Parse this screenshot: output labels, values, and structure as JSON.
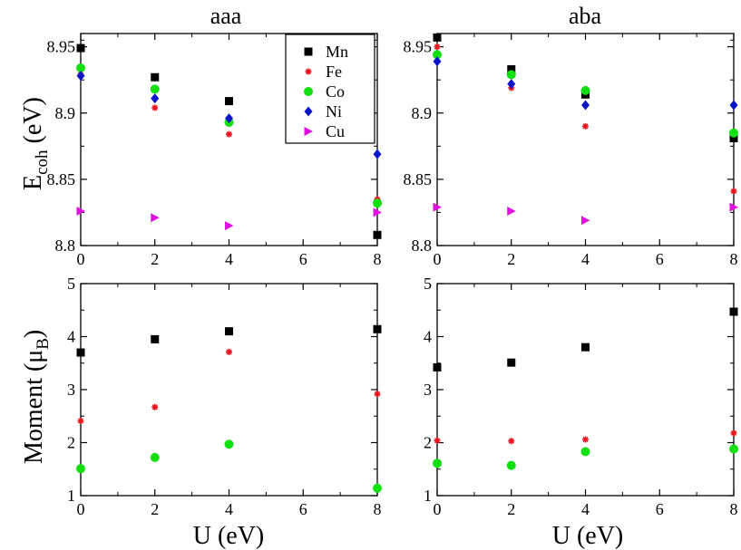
{
  "colors": {
    "Mn": "#000000",
    "Fe": "#e8141e",
    "Co": "#10e010",
    "Ni": "#0a14c8",
    "Cu": "#e010e0"
  },
  "markers": {
    "Mn": "square",
    "Fe": "star",
    "Co": "circle",
    "Ni": "diamond",
    "Cu": "triangle-right"
  },
  "labels": {
    "ecoh_main": "E",
    "ecoh_sub": "coh",
    "ecoh_unit": " (eV)",
    "moment_main": "Moment (μ",
    "moment_sub": "B",
    "moment_close": ")",
    "x_label_left": "U (eV)",
    "x_label_right": "U (eV)"
  },
  "chart_data": [
    {
      "id": "aaa-ecoh",
      "type": "scatter",
      "title": "aaa",
      "xlabel": "",
      "ylabel": "Ecoh (eV)",
      "xlim": [
        0,
        8
      ],
      "ylim": [
        8.8,
        8.96
      ],
      "xticks": [
        0,
        2,
        4,
        6,
        8
      ],
      "yticks": [
        8.8,
        8.85,
        8.9,
        8.95
      ],
      "ytick_labels": [
        "8.8",
        "8.85",
        "8.9",
        "8.95"
      ],
      "legend": {
        "placement": "top-right",
        "entries": [
          "Mn",
          "Fe",
          "Co",
          "Ni",
          "Cu"
        ]
      },
      "series": [
        {
          "name": "Mn",
          "x": [
            0,
            2,
            4,
            8
          ],
          "y": [
            8.949,
            8.927,
            8.909,
            8.808
          ]
        },
        {
          "name": "Fe",
          "x": [
            0,
            2,
            4,
            8
          ],
          "y": [
            8.929,
            8.904,
            8.884,
            8.835
          ]
        },
        {
          "name": "Co",
          "x": [
            0,
            2,
            4,
            8
          ],
          "y": [
            8.934,
            8.918,
            8.893,
            8.832
          ]
        },
        {
          "name": "Ni",
          "x": [
            0,
            2,
            4,
            8
          ],
          "y": [
            8.928,
            8.911,
            8.896,
            8.869
          ]
        },
        {
          "name": "Cu",
          "x": [
            0,
            2,
            4,
            8
          ],
          "y": [
            8.826,
            8.821,
            8.815,
            8.825
          ]
        }
      ]
    },
    {
      "id": "aba-ecoh",
      "type": "scatter",
      "title": "aba",
      "xlabel": "",
      "ylabel": "",
      "xlim": [
        0,
        8
      ],
      "ylim": [
        8.8,
        8.96
      ],
      "xticks": [
        0,
        2,
        4,
        6,
        8
      ],
      "yticks": [
        8.8,
        8.85,
        8.9,
        8.95
      ],
      "ytick_labels": [
        "8.8",
        "8.85",
        "8.9",
        "8.95"
      ],
      "series": [
        {
          "name": "Mn",
          "x": [
            0,
            2,
            4,
            8
          ],
          "y": [
            8.957,
            8.933,
            8.914,
            8.881
          ]
        },
        {
          "name": "Fe",
          "x": [
            0,
            2,
            4,
            8
          ],
          "y": [
            8.95,
            8.919,
            8.89,
            8.841
          ]
        },
        {
          "name": "Co",
          "x": [
            0,
            2,
            4,
            8
          ],
          "y": [
            8.944,
            8.929,
            8.917,
            8.885
          ]
        },
        {
          "name": "Ni",
          "x": [
            0,
            2,
            4,
            8
          ],
          "y": [
            8.939,
            8.922,
            8.906,
            8.906
          ]
        },
        {
          "name": "Cu",
          "x": [
            0,
            2,
            4,
            8
          ],
          "y": [
            8.829,
            8.826,
            8.819,
            8.829
          ]
        }
      ]
    },
    {
      "id": "aaa-moment",
      "type": "scatter",
      "title": "",
      "xlabel": "U (eV)",
      "ylabel": "Moment (μB)",
      "xlim": [
        0,
        8
      ],
      "ylim": [
        1,
        5
      ],
      "xticks": [
        0,
        2,
        4,
        6,
        8
      ],
      "yticks": [
        1,
        2,
        3,
        4,
        5
      ],
      "ytick_labels": [
        "1",
        "2",
        "3",
        "4",
        "5"
      ],
      "series": [
        {
          "name": "Mn",
          "x": [
            0,
            2,
            4,
            8
          ],
          "y": [
            3.7,
            3.95,
            4.1,
            4.14
          ]
        },
        {
          "name": "Fe",
          "x": [
            0,
            2,
            4,
            8
          ],
          "y": [
            2.41,
            2.67,
            3.71,
            2.92
          ]
        },
        {
          "name": "Co",
          "x": [
            0,
            2,
            4,
            8
          ],
          "y": [
            1.51,
            1.72,
            1.97,
            1.14
          ]
        }
      ]
    },
    {
      "id": "aba-moment",
      "type": "scatter",
      "title": "",
      "xlabel": "U (eV)",
      "ylabel": "",
      "xlim": [
        0,
        8
      ],
      "ylim": [
        1,
        5
      ],
      "xticks": [
        0,
        2,
        4,
        6,
        8
      ],
      "yticks": [
        1,
        2,
        3,
        4,
        5
      ],
      "ytick_labels": [
        "1",
        "2",
        "3",
        "4",
        "5"
      ],
      "series": [
        {
          "name": "Mn",
          "x": [
            0,
            2,
            4,
            8
          ],
          "y": [
            3.42,
            3.51,
            3.8,
            4.47
          ]
        },
        {
          "name": "Fe",
          "x": [
            0,
            2,
            4,
            8
          ],
          "y": [
            2.04,
            2.03,
            2.06,
            2.18
          ]
        },
        {
          "name": "Co",
          "x": [
            0,
            2,
            4,
            8
          ],
          "y": [
            1.61,
            1.57,
            1.83,
            1.88
          ]
        }
      ]
    }
  ]
}
